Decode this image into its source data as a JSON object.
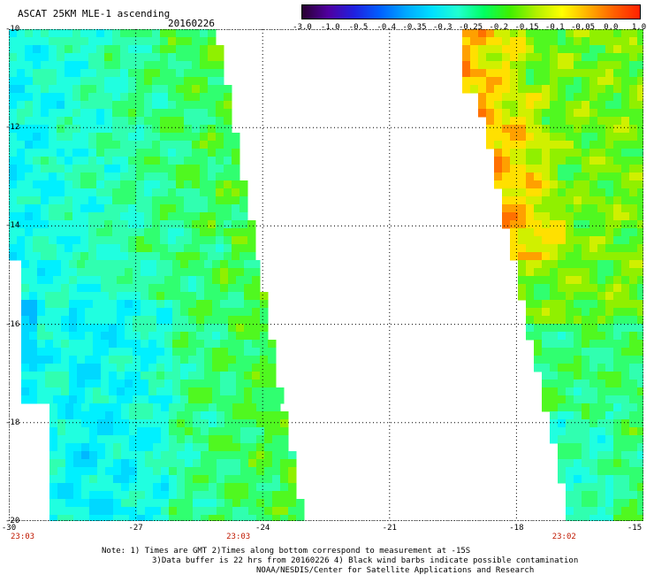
{
  "header": {
    "title": "ASCAT 25KM MLE-1 ascending",
    "date": "20160226"
  },
  "colorbar": {
    "labels": [
      "-3.0",
      "-1.0",
      "-0.5",
      "-0.4",
      "-0.35",
      "-0.3",
      "-0.25",
      "-0.2",
      "-0.15",
      "-0.1",
      "-0.05",
      "0.0",
      "1.0"
    ],
    "colors": [
      "#280030",
      "#5000a0",
      "#2020e0",
      "#0060ff",
      "#00a8ff",
      "#00e0ff",
      "#20ffd0",
      "#00ff60",
      "#40f000",
      "#b0f000",
      "#ffff00",
      "#ffb000",
      "#ff6000",
      "#ff2000"
    ]
  },
  "map": {
    "lon_range": [
      -30,
      -15
    ],
    "lat_range": [
      -20,
      -10
    ],
    "lon_ticks": [
      "-30",
      "-27",
      "-24",
      "-21",
      "-18",
      "-15"
    ],
    "lat_ticks": [
      "-10",
      "-12",
      "-14",
      "-16",
      "-18",
      "-20"
    ],
    "time_labels": [
      {
        "text": "23:03",
        "lon": -30
      },
      {
        "text": "23:03",
        "lon": -24.9
      },
      {
        "text": "23:02",
        "lon": -17.2
      }
    ]
  },
  "footer": {
    "note_line1": "Note: 1) Times are GMT 2)Times along bottom correspond to measurement at -15S",
    "note_line2": "3)Data buffer is 22 hrs from 20160226 4) Black wind barbs indicate possible contamination",
    "credit": "NOAA/NESDIS/Center for Satellite Applications and Research"
  }
}
